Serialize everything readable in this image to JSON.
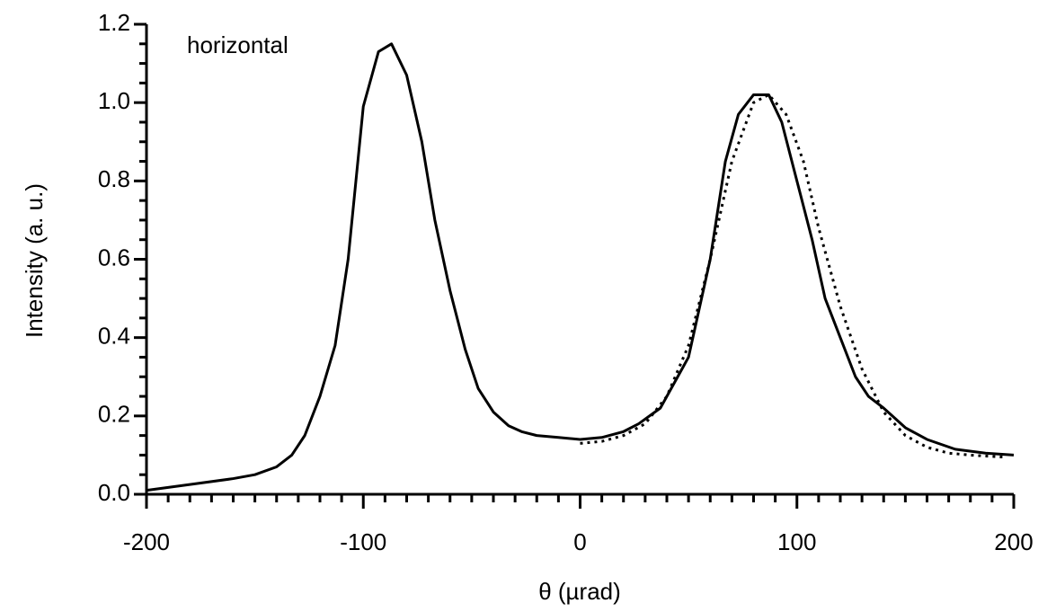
{
  "chart_data": {
    "type": "line",
    "annotation": "horizontal",
    "xlabel": "θ (µrad)",
    "ylabel": "Intensity (a. u.)",
    "xlim": [
      -200,
      200
    ],
    "ylim": [
      0,
      1.2
    ],
    "xticks": [
      -200,
      -100,
      0,
      100,
      200
    ],
    "yticks": [
      {
        "value": 0,
        "label": "0.0"
      },
      0.2,
      0.4,
      0.6,
      0.8,
      {
        "value": 1,
        "label": "1.0"
      },
      1.2
    ],
    "xminorticks": [
      -190,
      -180,
      -170,
      -160,
      -150,
      -140,
      -130,
      -120,
      -110,
      -90,
      -80,
      -70,
      -60,
      -50,
      -40,
      -30,
      -20,
      -10,
      10,
      20,
      30,
      40,
      50,
      60,
      70,
      80,
      90,
      110,
      120,
      130,
      140,
      150,
      160,
      170,
      180,
      190
    ],
    "yminorticks": [
      0.05,
      0.1,
      0.15,
      0.25,
      0.3,
      0.35,
      0.45,
      0.5,
      0.55,
      0.65,
      0.7,
      0.75,
      0.85,
      0.9,
      0.95,
      1.05,
      1.1,
      1.15
    ],
    "series": [
      {
        "color": "#000000",
        "dash": "solid",
        "x": [
          -200,
          -180,
          -160,
          -150,
          -140,
          -133,
          -127,
          -120,
          -113,
          -107,
          -100,
          -93,
          -87,
          -80,
          -73,
          -67,
          -60,
          -53,
          -47,
          -40,
          -33,
          -27,
          -20,
          -10,
          0,
          10,
          20,
          27,
          37,
          50,
          60,
          67,
          73,
          80,
          87,
          93,
          100,
          107,
          113,
          120,
          127,
          133,
          140,
          150,
          160,
          173,
          187,
          200
        ],
        "values": [
          0.01,
          0.025,
          0.04,
          0.05,
          0.07,
          0.1,
          0.15,
          0.25,
          0.38,
          0.6,
          0.99,
          1.13,
          1.15,
          1.07,
          0.9,
          0.7,
          0.52,
          0.37,
          0.27,
          0.21,
          0.175,
          0.16,
          0.15,
          0.145,
          0.14,
          0.145,
          0.16,
          0.18,
          0.22,
          0.35,
          0.6,
          0.85,
          0.97,
          1.02,
          1.02,
          0.95,
          0.8,
          0.65,
          0.5,
          0.4,
          0.3,
          0.25,
          0.22,
          0.17,
          0.14,
          0.115,
          0.105,
          0.1
        ]
      },
      {
        "color": "#000000",
        "dash": "dotted",
        "x": [
          0,
          10,
          20,
          30,
          40,
          50,
          60,
          70,
          80,
          87,
          95,
          103,
          110,
          120,
          130,
          140,
          150,
          160,
          170,
          180,
          195
        ],
        "values": [
          0.13,
          0.135,
          0.15,
          0.18,
          0.25,
          0.38,
          0.6,
          0.85,
          1.0,
          1.02,
          0.97,
          0.85,
          0.68,
          0.48,
          0.32,
          0.21,
          0.15,
          0.12,
          0.105,
          0.1,
          0.095
        ]
      }
    ]
  }
}
